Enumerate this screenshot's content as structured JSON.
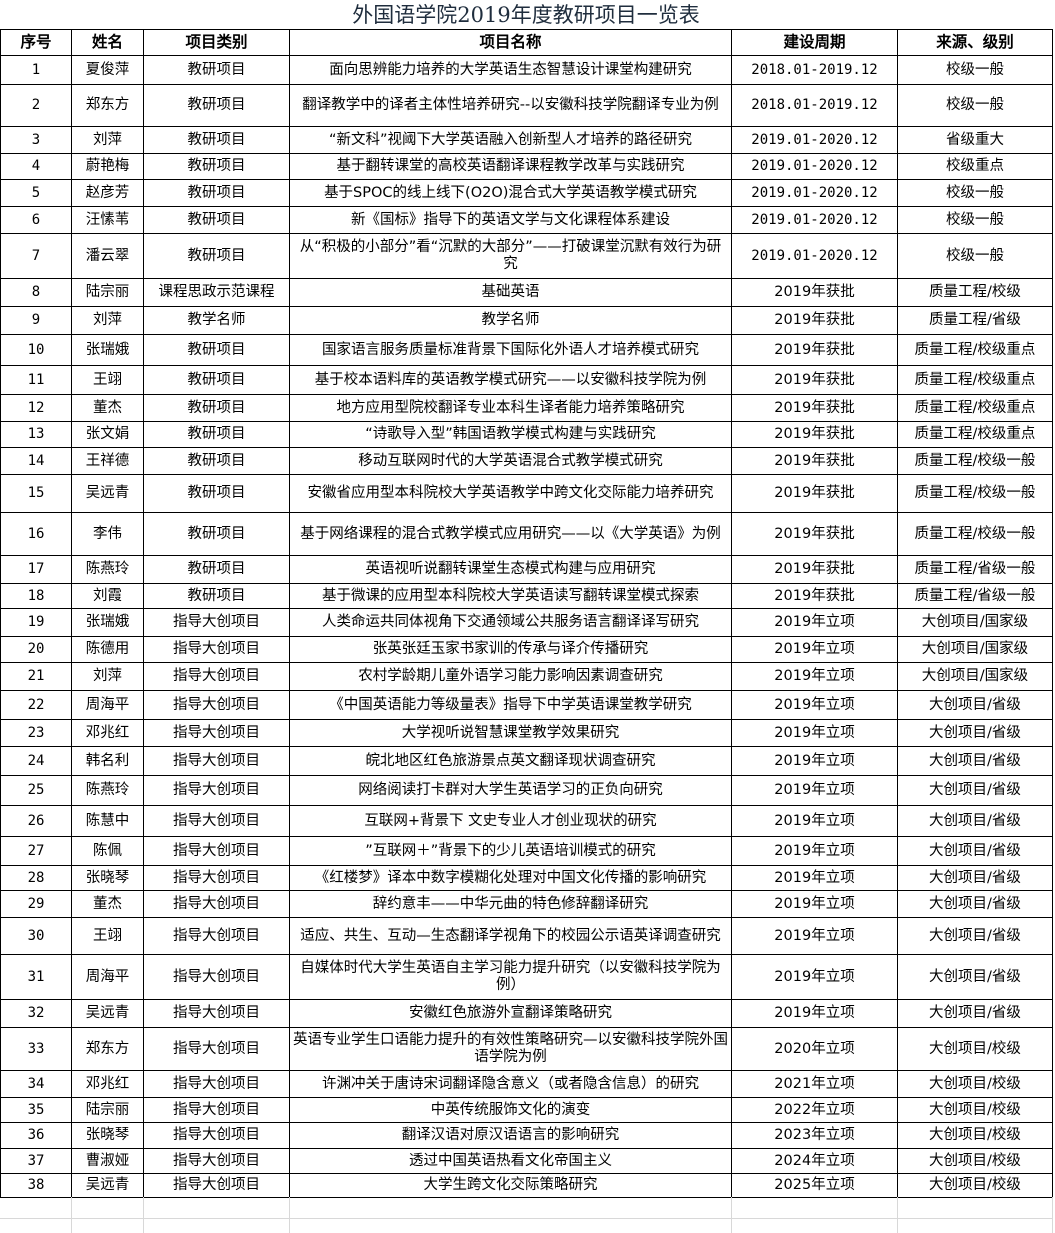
{
  "title": "外国语学院2019年度教研项目一览表",
  "headers": [
    "序号",
    "姓名",
    "项目类别",
    "项目名称",
    "建设周期",
    "来源、级别"
  ],
  "rows": [
    [
      "1",
      "夏俊萍",
      "教研项目",
      "面向思辨能力培养的大学英语生态智慧设计课堂构建研究",
      "2018.01-2019.12",
      "校级一般"
    ],
    [
      "2",
      "郑东方",
      "教研项目",
      "翻译教学中的译者主体性培养研究--以安徽科技学院翻译专业为例",
      "2018.01-2019.12",
      "校级一般"
    ],
    [
      "3",
      "刘萍",
      "教研项目",
      "“新文科”视阈下大学英语融入创新型人才培养的路径研究",
      "2019.01-2020.12",
      "省级重大"
    ],
    [
      "4",
      "蔚艳梅",
      "教研项目",
      "基于翻转课堂的高校英语翻译课程教学改革与实践研究",
      "2019.01-2020.12",
      "校级重点"
    ],
    [
      "5",
      "赵彦芳",
      "教研项目",
      "基于SPOC的线上线下(O2O)混合式大学英语教学模式研究",
      "2019.01-2020.12",
      "校级一般"
    ],
    [
      "6",
      "汪愫苇",
      "教研项目",
      "新《国标》指导下的英语文学与文化课程体系建设",
      "2019.01-2020.12",
      "校级一般"
    ],
    [
      "7",
      "潘云翠",
      "教研项目",
      "从“积极的小部分”看“沉默的大部分”——打破课堂沉默有效行为研究",
      "2019.01-2020.12",
      "校级一般"
    ],
    [
      "8",
      "陆宗丽",
      "课程思政示范课程",
      "基础英语",
      "2019年获批",
      "质量工程/校级"
    ],
    [
      "9",
      "刘萍",
      "教学名师",
      "教学名师",
      "2019年获批",
      "质量工程/省级"
    ],
    [
      "10",
      "张瑞娥",
      "教研项目",
      "国家语言服务质量标准背景下国际化外语人才培养模式研究",
      "2019年获批",
      "质量工程/校级重点"
    ],
    [
      "11",
      "王翊",
      "教研项目",
      "基于校本语料库的英语教学模式研究——以安徽科技学院为例",
      "2019年获批",
      "质量工程/校级重点"
    ],
    [
      "12",
      "董杰",
      "教研项目",
      "地方应用型院校翻译专业本科生译者能力培养策略研究",
      "2019年获批",
      "质量工程/校级重点"
    ],
    [
      "13",
      "张文娟",
      "教研项目",
      "“诗歌导入型”韩国语教学模式构建与实践研究",
      "2019年获批",
      "质量工程/校级重点"
    ],
    [
      "14",
      "王祥德",
      "教研项目",
      "移动互联网时代的大学英语混合式教学模式研究",
      "2019年获批",
      "质量工程/校级一般"
    ],
    [
      "15",
      "吴远青",
      "教研项目",
      "安徽省应用型本科院校大学英语教学中跨文化交际能力培养研究",
      "2019年获批",
      "质量工程/校级一般"
    ],
    [
      "16",
      "李伟",
      "教研项目",
      "基于网络课程的混合式教学模式应用研究——以《大学英语》为例",
      "2019年获批",
      "质量工程/校级一般"
    ],
    [
      "17",
      "陈燕玲",
      "教研项目",
      "英语视听说翻转课堂生态模式构建与应用研究",
      "2019年获批",
      "质量工程/省级一般"
    ],
    [
      "18",
      "刘霞",
      "教研项目",
      "基于微课的应用型本科院校大学英语读写翻转课堂模式探索",
      "2019年获批",
      "质量工程/省级一般"
    ],
    [
      "19",
      "张瑞娥",
      "指导大创项目",
      "人类命运共同体视角下交通领域公共服务语言翻译译写研究",
      "2019年立项",
      "大创项目/国家级"
    ],
    [
      "20",
      "陈德用",
      "指导大创项目",
      "张英张廷玉家书家训的传承与译介传播研究",
      "2019年立项",
      "大创项目/国家级"
    ],
    [
      "21",
      "刘萍",
      "指导大创项目",
      "农村学龄期儿童外语学习能力影响因素调查研究",
      "2019年立项",
      "大创项目/国家级"
    ],
    [
      "22",
      "周海平",
      "指导大创项目",
      "《中国英语能力等级量表》指导下中学英语课堂教学研究",
      "2019年立项",
      "大创项目/省级"
    ],
    [
      "23",
      "邓兆红",
      "指导大创项目",
      "大学视听说智慧课堂教学效果研究",
      "2019年立项",
      "大创项目/省级"
    ],
    [
      "24",
      "韩名利",
      "指导大创项目",
      "皖北地区红色旅游景点英文翻译现状调查研究",
      "2019年立项",
      "大创项目/省级"
    ],
    [
      "25",
      "陈燕玲",
      "指导大创项目",
      "网络阅读打卡群对大学生英语学习的正负向研究",
      "2019年立项",
      "大创项目/省级"
    ],
    [
      "26",
      "陈慧中",
      "指导大创项目",
      "互联网+背景下  文史专业人才创业现状的研究",
      "2019年立项",
      "大创项目/省级"
    ],
    [
      "27",
      "陈佩",
      "指导大创项目",
      "”互联网＋”背景下的少儿英语培训模式的研究",
      "2019年立项",
      "大创项目/省级"
    ],
    [
      "28",
      "张晓琴",
      "指导大创项目",
      "《红楼梦》译本中数字模糊化处理对中国文化传播的影响研究",
      "2019年立项",
      "大创项目/省级"
    ],
    [
      "29",
      "董杰",
      "指导大创项目",
      "辞约意丰——中华元曲的特色修辞翻译研究",
      "2019年立项",
      "大创项目/省级"
    ],
    [
      "30",
      "王翊",
      "指导大创项目",
      "适应、共生、互动—生态翻译学视角下的校园公示语英译调查研究",
      "2019年立项",
      "大创项目/省级"
    ],
    [
      "31",
      "周海平",
      "指导大创项目",
      "自媒体时代大学生英语自主学习能力提升研究（以安徽科技学院为例）",
      "2019年立项",
      "大创项目/省级"
    ],
    [
      "32",
      "吴远青",
      "指导大创项目",
      "安徽红色旅游外宣翻译策略研究",
      "2019年立项",
      "大创项目/省级"
    ],
    [
      "33",
      "郑东方",
      "指导大创项目",
      "英语专业学生口语能力提升的有效性策略研究—以安徽科技学院外国语学院为例",
      "2020年立项",
      "大创项目/校级"
    ],
    [
      "34",
      "邓兆红",
      "指导大创项目",
      "许渊冲关于唐诗宋词翻译隐含意义（或者隐含信息）的研究",
      "2021年立项",
      "大创项目/校级"
    ],
    [
      "35",
      "陆宗丽",
      "指导大创项目",
      "中英传统服饰文化的演变",
      "2022年立项",
      "大创项目/校级"
    ],
    [
      "36",
      "张晓琴",
      "指导大创项目",
      "翻译汉语对原汉语语言的影响研究",
      "2023年立项",
      "大创项目/校级"
    ],
    [
      "37",
      "曹淑娅",
      "指导大创项目",
      "透过中国英语热看文化帝国主义",
      "2024年立项",
      "大创项目/校级"
    ],
    [
      "38",
      "吴远青",
      "指导大创项目",
      "大学生跨文化交际策略研究",
      "2025年立项",
      "大创项目/校级"
    ]
  ]
}
